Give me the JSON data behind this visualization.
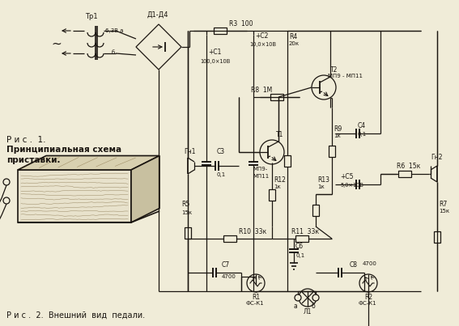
{
  "background_color": "#f0ecd8",
  "text_color": "#1a1510",
  "title_line1": "Р и с .  1.",
  "title_line2": "Принципиальная схема",
  "title_line3": "приставки.",
  "caption2": "Р и с .  2.  Внешний  вид  педали.",
  "fig_width": 5.67,
  "fig_height": 4.03,
  "dpi": 100
}
